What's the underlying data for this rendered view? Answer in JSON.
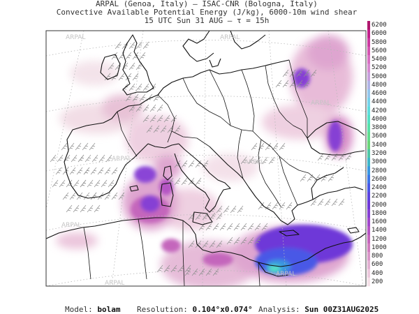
{
  "title": {
    "line1": "ARPAL (Genoa, Italy)  –  ISAC-CNR (Bologna, Italy)",
    "line2": "Convective Available Potential Energy (J/kg), 6000-10m wind shear",
    "line3": "15 UTC Sun 31 AUG  –  τ = 15h"
  },
  "watermark": "ARPAL",
  "colorbar": {
    "labels": [
      "6200",
      "6000",
      "5800",
      "5600",
      "5400",
      "5200",
      "5000",
      "4800",
      "4600",
      "4400",
      "4200",
      "4000",
      "3800",
      "3600",
      "3400",
      "3200",
      "3000",
      "2800",
      "2600",
      "2400",
      "2200",
      "2000",
      "1800",
      "1600",
      "1400",
      "1200",
      "1000",
      "800",
      "600",
      "400",
      "200"
    ],
    "colors": [
      "#b0186e",
      "#c2208a",
      "#cc3aa0",
      "#d455b0",
      "#d870c2",
      "#d78ad0",
      "#c7a0dc",
      "#b1b4e6",
      "#93c6ec",
      "#76d3ea",
      "#5fdcdc",
      "#55e0c4",
      "#58e0a8",
      "#62dc8e",
      "#6bd57a",
      "#4fc7a6",
      "#3fb6c8",
      "#3a97e0",
      "#3d76e8",
      "#4a58e6",
      "#5c44e0",
      "#6e38d8",
      "#8640d4",
      "#a048cc",
      "#b554c4",
      "#c466bc",
      "#d07cbe",
      "#d996c8",
      "#e2b0d2",
      "#ecc8dc",
      "#f5e0e8"
    ]
  },
  "footer": {
    "model_label": "Model:",
    "model_value": "bolam",
    "resolution_label": "Resolution:",
    "resolution_value": "0.104°x0.074°",
    "analysis_label": "Analysis:",
    "analysis_value": "Sun 00Z31AUG2025"
  }
}
